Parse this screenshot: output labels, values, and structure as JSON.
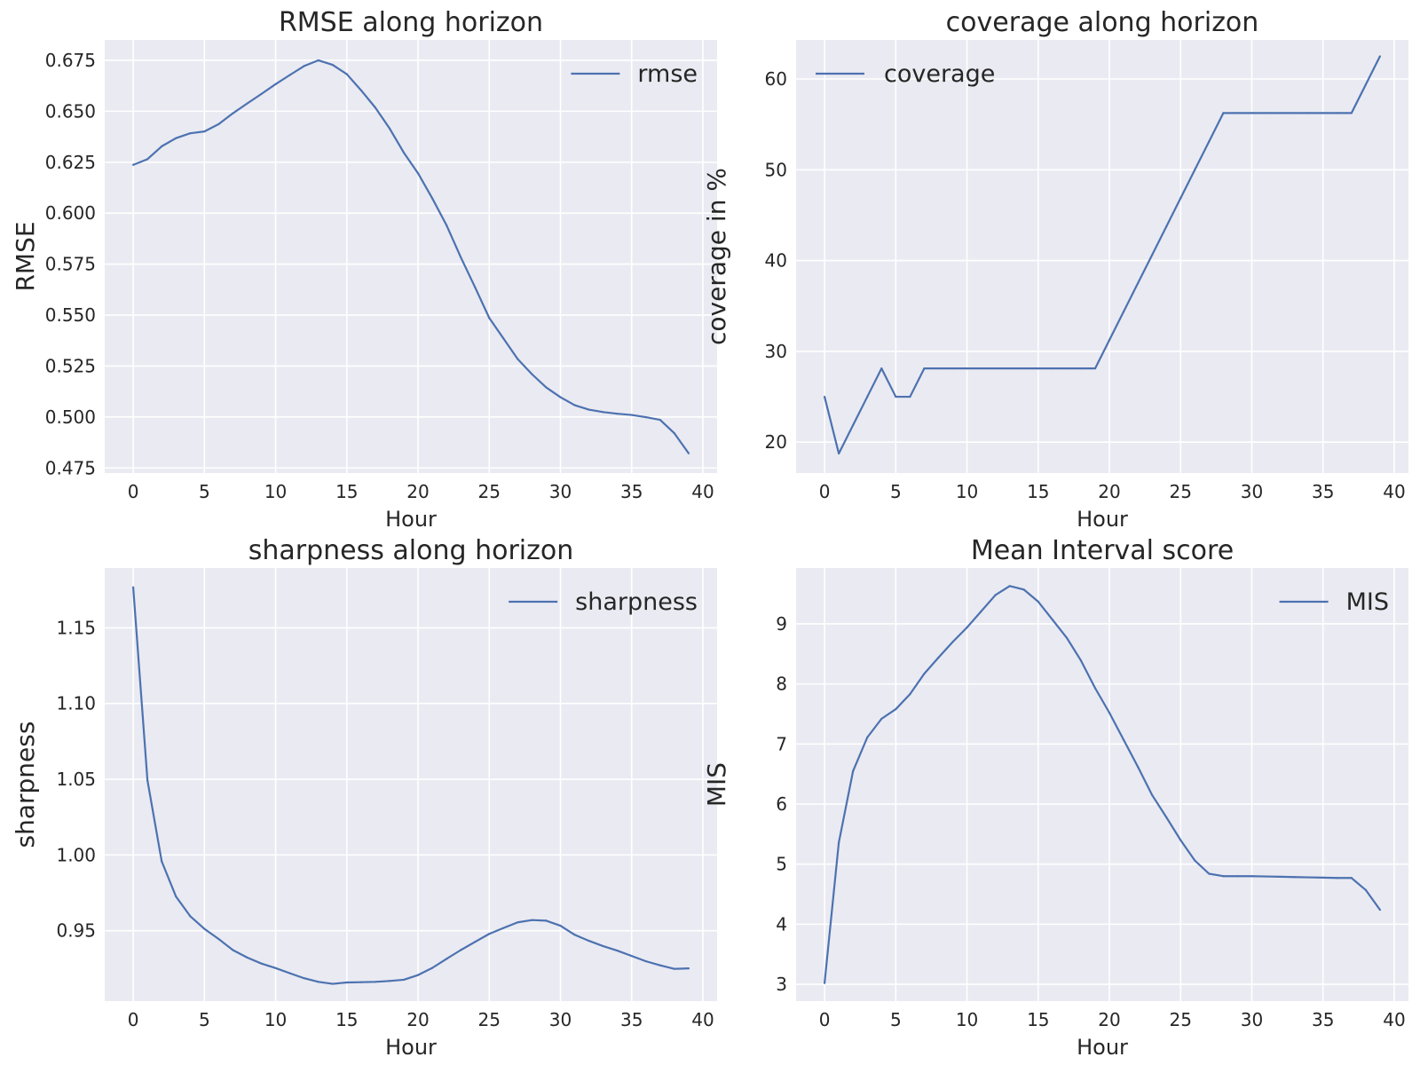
{
  "chart_data": [
    {
      "type": "line",
      "title": "RMSE along horizon",
      "xlabel": "Hour",
      "ylabel": "RMSE",
      "xlim": [
        -2,
        41
      ],
      "ylim": [
        0.4725,
        0.685
      ],
      "xticks": [
        0,
        5,
        10,
        15,
        20,
        25,
        30,
        35,
        40
      ],
      "yticks": [
        0.475,
        0.5,
        0.525,
        0.55,
        0.575,
        0.6,
        0.625,
        0.65,
        0.675
      ],
      "ytick_labels": [
        "0.475",
        "0.500",
        "0.525",
        "0.550",
        "0.575",
        "0.600",
        "0.625",
        "0.650",
        "0.675"
      ],
      "grid": true,
      "legend": "top-right",
      "series": [
        {
          "name": "rmse",
          "color": "#4c72b0",
          "x": [
            0,
            1,
            2,
            3,
            4,
            5,
            6,
            7,
            8,
            9,
            10,
            11,
            12,
            13,
            14,
            15,
            16,
            17,
            18,
            19,
            20,
            21,
            22,
            23,
            24,
            25,
            26,
            27,
            28,
            29,
            30,
            31,
            32,
            33,
            34,
            35,
            36,
            37,
            38,
            39
          ],
          "y": [
            0.6237,
            0.6265,
            0.6328,
            0.6368,
            0.6392,
            0.6401,
            0.6437,
            0.649,
            0.6538,
            0.6585,
            0.6633,
            0.6678,
            0.6722,
            0.675,
            0.6728,
            0.6682,
            0.6603,
            0.6518,
            0.6416,
            0.6297,
            0.6196,
            0.6073,
            0.5941,
            0.5784,
            0.5637,
            0.5486,
            0.5385,
            0.5284,
            0.521,
            0.5145,
            0.5097,
            0.5058,
            0.5036,
            0.5024,
            0.5016,
            0.501,
            0.4999,
            0.4986,
            0.492,
            0.4822
          ]
        }
      ]
    },
    {
      "type": "line",
      "title": "coverage along horizon",
      "xlabel": "Hour",
      "ylabel": "coverage in %",
      "xlim": [
        -2,
        41
      ],
      "ylim": [
        16.6,
        64.3
      ],
      "xticks": [
        0,
        5,
        10,
        15,
        20,
        25,
        30,
        35,
        40
      ],
      "yticks": [
        20,
        30,
        40,
        50,
        60
      ],
      "ytick_labels": [
        "20",
        "30",
        "40",
        "50",
        "60"
      ],
      "grid": true,
      "legend": "top-left",
      "series": [
        {
          "name": "coverage",
          "color": "#4c72b0",
          "x": [
            0,
            1,
            2,
            3,
            4,
            5,
            6,
            7,
            8,
            9,
            10,
            11,
            12,
            13,
            14,
            15,
            16,
            17,
            18,
            19,
            20,
            21,
            22,
            23,
            24,
            25,
            26,
            27,
            28,
            29,
            30,
            31,
            32,
            33,
            34,
            35,
            36,
            37,
            38,
            39
          ],
          "y": [
            25.0,
            18.75,
            21.875,
            25.0,
            28.125,
            25.0,
            25.0,
            28.125,
            28.125,
            28.125,
            28.125,
            28.125,
            28.125,
            28.125,
            28.125,
            28.125,
            28.125,
            28.125,
            28.125,
            28.125,
            31.25,
            34.375,
            37.5,
            40.625,
            43.75,
            46.875,
            50.0,
            53.125,
            56.25,
            56.25,
            56.25,
            56.25,
            56.25,
            56.25,
            56.25,
            56.25,
            56.25,
            56.25,
            59.375,
            62.5
          ]
        }
      ]
    },
    {
      "type": "line",
      "title": "sharpness along horizon",
      "xlabel": "Hour",
      "ylabel": "sharpness",
      "xlim": [
        -2,
        41
      ],
      "ylim": [
        0.9035,
        1.1895
      ],
      "xticks": [
        0,
        5,
        10,
        15,
        20,
        25,
        30,
        35,
        40
      ],
      "yticks": [
        0.95,
        1.0,
        1.05,
        1.1,
        1.15
      ],
      "ytick_labels": [
        "0.95",
        "1.00",
        "1.05",
        "1.10",
        "1.15"
      ],
      "grid": true,
      "legend": "top-right",
      "series": [
        {
          "name": "sharpness",
          "color": "#4c72b0",
          "x": [
            0,
            1,
            2,
            3,
            4,
            5,
            6,
            7,
            8,
            9,
            10,
            11,
            12,
            13,
            14,
            15,
            16,
            17,
            18,
            19,
            20,
            21,
            22,
            23,
            24,
            25,
            26,
            27,
            28,
            29,
            30,
            31,
            32,
            33,
            34,
            35,
            36,
            37,
            38,
            39
          ],
          "y": [
            1.1768,
            1.0493,
            0.9958,
            0.9726,
            0.9596,
            0.9512,
            0.9445,
            0.9372,
            0.9323,
            0.9283,
            0.9253,
            0.9219,
            0.9186,
            0.9162,
            0.9149,
            0.9158,
            0.916,
            0.9162,
            0.9168,
            0.9176,
            0.9207,
            0.9254,
            0.9314,
            0.9372,
            0.9426,
            0.9479,
            0.9518,
            0.9555,
            0.957,
            0.9566,
            0.9533,
            0.9473,
            0.9433,
            0.9398,
            0.9368,
            0.9333,
            0.9298,
            0.9271,
            0.9248,
            0.9251
          ]
        }
      ]
    },
    {
      "type": "line",
      "title": "Mean Interval score",
      "xlabel": "Hour",
      "ylabel": "MIS",
      "xlim": [
        -2,
        41
      ],
      "ylim": [
        2.72,
        9.93
      ],
      "xticks": [
        0,
        5,
        10,
        15,
        20,
        25,
        30,
        35,
        40
      ],
      "yticks": [
        3,
        4,
        5,
        6,
        7,
        8,
        9
      ],
      "ytick_labels": [
        "3",
        "4",
        "5",
        "6",
        "7",
        "8",
        "9"
      ],
      "grid": true,
      "legend": "top-right",
      "series": [
        {
          "name": "MIS",
          "color": "#4c72b0",
          "x": [
            0,
            1,
            2,
            3,
            4,
            5,
            6,
            7,
            8,
            9,
            10,
            11,
            12,
            13,
            14,
            15,
            16,
            17,
            18,
            19,
            20,
            21,
            22,
            23,
            24,
            25,
            26,
            27,
            28,
            29,
            30,
            31,
            32,
            33,
            34,
            35,
            36,
            37,
            38,
            39
          ],
          "y": [
            3.02,
            5.36,
            6.55,
            7.11,
            7.42,
            7.58,
            7.83,
            8.17,
            8.44,
            8.7,
            8.94,
            9.21,
            9.48,
            9.63,
            9.57,
            9.37,
            9.07,
            8.77,
            8.39,
            7.93,
            7.52,
            7.07,
            6.62,
            6.15,
            5.78,
            5.4,
            5.06,
            4.84,
            4.8,
            4.8,
            4.8,
            4.795,
            4.79,
            4.785,
            4.78,
            4.775,
            4.77,
            4.77,
            4.57,
            4.24
          ]
        }
      ]
    }
  ]
}
